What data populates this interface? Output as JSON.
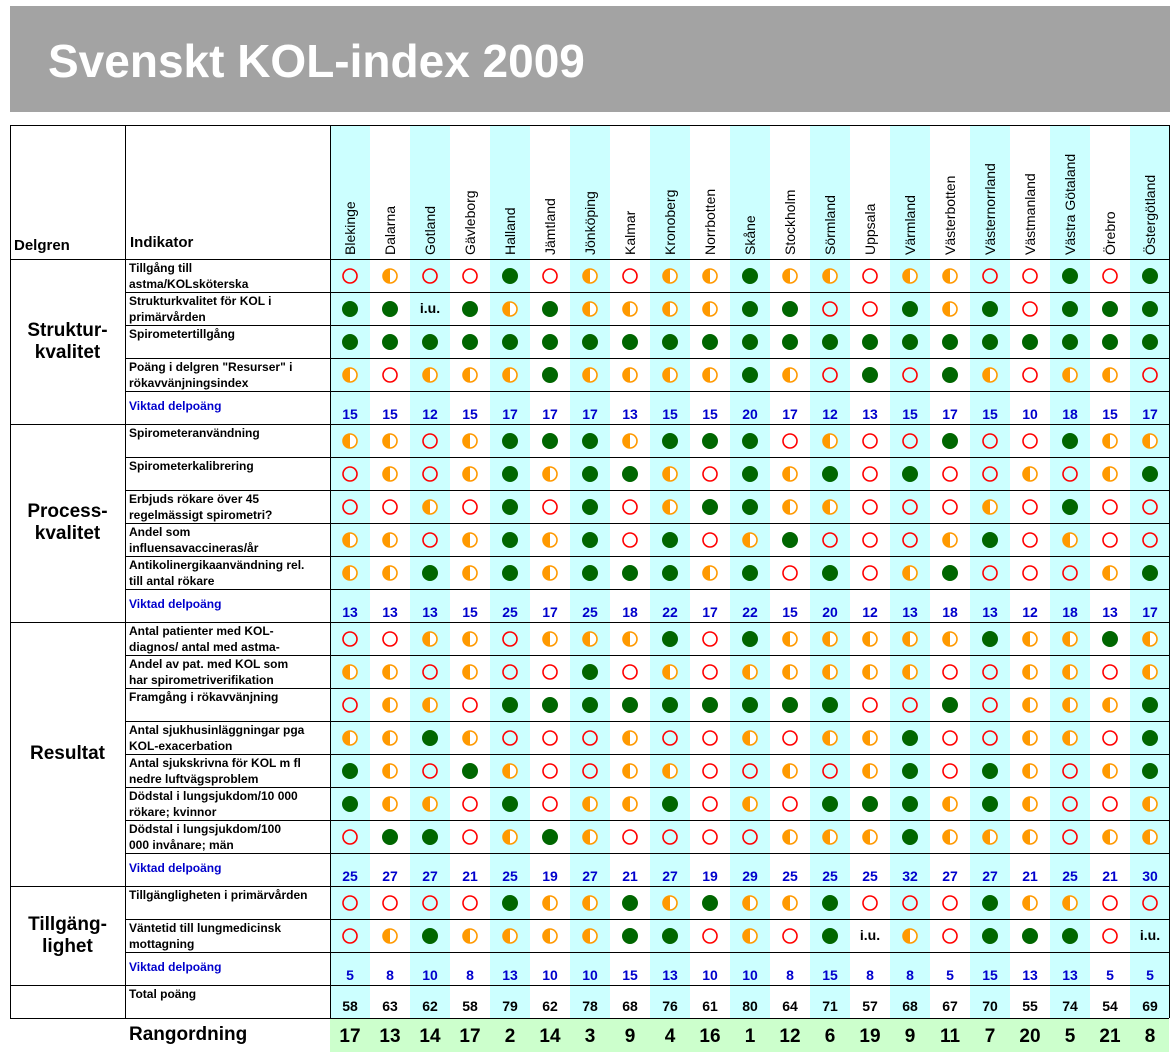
{
  "title": "Svenskt KOL-index 2009",
  "headers": {
    "group": "Delgren",
    "indicator": "Indikator"
  },
  "regions": [
    "Blekinge",
    "Dalarna",
    "Gotland",
    "Gävleborg",
    "Halland",
    "Jämtland",
    "Jönköping",
    "Kalmar",
    "Kronoberg",
    "Norrbotten",
    "Skåne",
    "Stockholm",
    "Sörmland",
    "Uppsala",
    "Värmland",
    "Västerbotten",
    "Västernorrland",
    "Västmanland",
    "Västra Götaland",
    "Örebro",
    "Östergötland"
  ],
  "legend_colors": {
    "full": "#006600",
    "half_fill": "#ff9900",
    "empty": "#ff0000"
  },
  "groups": [
    {
      "name": "Struktur-\nkvalitet",
      "indicators": [
        {
          "label": "Tillgång till\nastma/KOLsköterska",
          "values": [
            "E",
            "H",
            "E",
            "E",
            "F",
            "E",
            "H",
            "E",
            "H",
            "H",
            "F",
            "H",
            "H",
            "E",
            "H",
            "H",
            "E",
            "E",
            "F",
            "E",
            "F"
          ]
        },
        {
          "label": "Strukturkvalitet för KOL i\nprimärvården",
          "values": [
            "F",
            "F",
            "i.u.",
            "F",
            "H",
            "F",
            "H",
            "H",
            "H",
            "H",
            "F",
            "F",
            "E",
            "E",
            "F",
            "H",
            "F",
            "E",
            "F",
            "F",
            "F"
          ]
        },
        {
          "label": "Spirometertillgång",
          "values": [
            "F",
            "F",
            "F",
            "F",
            "F",
            "F",
            "F",
            "F",
            "F",
            "F",
            "F",
            "F",
            "F",
            "F",
            "F",
            "F",
            "F",
            "F",
            "F",
            "F",
            "F"
          ]
        },
        {
          "label": "Poäng i delgren \"Resurser\" i\nrökavvänjningsindex",
          "values": [
            "H",
            "E",
            "H",
            "H",
            "H",
            "F",
            "H",
            "H",
            "H",
            "H",
            "F",
            "H",
            "E",
            "F",
            "E",
            "F",
            "H",
            "E",
            "H",
            "H",
            "E"
          ]
        }
      ],
      "weighted_label": "Viktad delpoäng",
      "weighted": [
        "15",
        "15",
        "12",
        "15",
        "17",
        "17",
        "17",
        "13",
        "15",
        "15",
        "20",
        "17",
        "12",
        "13",
        "15",
        "17",
        "15",
        "10",
        "18",
        "15",
        "17"
      ]
    },
    {
      "name": "Process-\nkvalitet",
      "indicators": [
        {
          "label": "Spirometeranvändning",
          "values": [
            "H",
            "H",
            "E",
            "H",
            "F",
            "F",
            "F",
            "H",
            "F",
            "F",
            "F",
            "E",
            "H",
            "E",
            "E",
            "F",
            "E",
            "E",
            "F",
            "H",
            "H"
          ]
        },
        {
          "label": "Spirometerkalibrering",
          "values": [
            "E",
            "H",
            "E",
            "H",
            "F",
            "H",
            "F",
            "F",
            "H",
            "E",
            "F",
            "H",
            "F",
            "E",
            "F",
            "E",
            "E",
            "H",
            "E",
            "H",
            "F"
          ]
        },
        {
          "label": "Erbjuds rökare över 45\nregelmässigt spirometri?",
          "values": [
            "E",
            "E",
            "H",
            "E",
            "F",
            "E",
            "F",
            "E",
            "H",
            "F",
            "F",
            "H",
            "H",
            "E",
            "E",
            "E",
            "H",
            "E",
            "F",
            "E",
            "E"
          ]
        },
        {
          "label": "Andel som\ninfluensavaccineras/år",
          "values": [
            "H",
            "H",
            "E",
            "H",
            "F",
            "H",
            "F",
            "E",
            "F",
            "E",
            "H",
            "F",
            "E",
            "E",
            "E",
            "H",
            "F",
            "E",
            "H",
            "E",
            "E"
          ]
        },
        {
          "label": "Antikolinergikaanvändning rel.\ntill antal rökare",
          "values": [
            "H",
            "H",
            "F",
            "H",
            "F",
            "H",
            "F",
            "F",
            "F",
            "H",
            "F",
            "E",
            "F",
            "E",
            "H",
            "F",
            "E",
            "E",
            "E",
            "H",
            "F"
          ]
        }
      ],
      "weighted_label": "Viktad delpoäng",
      "weighted": [
        "13",
        "13",
        "13",
        "15",
        "25",
        "17",
        "25",
        "18",
        "22",
        "17",
        "22",
        "15",
        "20",
        "12",
        "13",
        "18",
        "13",
        "12",
        "18",
        "13",
        "17"
      ]
    },
    {
      "name": "Resultat",
      "indicators": [
        {
          "label": "Antal patienter med KOL-\ndiagnos/ antal med astma-",
          "values": [
            "E",
            "E",
            "H",
            "H",
            "E",
            "H",
            "H",
            "H",
            "F",
            "E",
            "F",
            "H",
            "H",
            "H",
            "H",
            "H",
            "F",
            "H",
            "H",
            "F",
            "H"
          ]
        },
        {
          "label": "Andel av pat. med KOL som\nhar spirometriverifikation",
          "values": [
            "H",
            "H",
            "E",
            "H",
            "E",
            "E",
            "F",
            "E",
            "H",
            "E",
            "H",
            "H",
            "H",
            "H",
            "H",
            "E",
            "E",
            "H",
            "H",
            "E",
            "H"
          ]
        },
        {
          "label": "Framgång i rökavvänjning",
          "values": [
            "E",
            "H",
            "H",
            "E",
            "F",
            "F",
            "F",
            "F",
            "F",
            "F",
            "F",
            "F",
            "F",
            "E",
            "E",
            "F",
            "E",
            "H",
            "H",
            "H",
            "F"
          ]
        },
        {
          "label": "Antal sjukhusinläggningar pga\nKOL-exacerbation",
          "values": [
            "H",
            "H",
            "F",
            "H",
            "E",
            "E",
            "E",
            "H",
            "E",
            "E",
            "H",
            "E",
            "H",
            "H",
            "F",
            "E",
            "E",
            "H",
            "H",
            "E",
            "F"
          ]
        },
        {
          "label": "Antal sjukskrivna för KOL m fl\nnedre luftvägsproblem",
          "values": [
            "F",
            "H",
            "E",
            "F",
            "H",
            "E",
            "E",
            "H",
            "H",
            "E",
            "E",
            "H",
            "E",
            "H",
            "F",
            "E",
            "F",
            "H",
            "E",
            "H",
            "F"
          ]
        },
        {
          "label": "Dödstal i lungsjukdom/10 000\nrökare; kvinnor",
          "values": [
            "F",
            "H",
            "H",
            "E",
            "F",
            "E",
            "H",
            "H",
            "F",
            "E",
            "H",
            "E",
            "F",
            "F",
            "F",
            "H",
            "F",
            "H",
            "E",
            "E",
            "H"
          ]
        },
        {
          "label": "Dödstal i lungsjukdom/100\n000 invånare; män",
          "values": [
            "E",
            "F",
            "F",
            "E",
            "H",
            "F",
            "H",
            "E",
            "E",
            "E",
            "E",
            "H",
            "H",
            "H",
            "F",
            "H",
            "H",
            "H",
            "E",
            "H",
            "H"
          ]
        }
      ],
      "weighted_label": "Viktad delpoäng",
      "weighted": [
        "25",
        "27",
        "27",
        "21",
        "25",
        "19",
        "27",
        "21",
        "27",
        "19",
        "29",
        "25",
        "25",
        "25",
        "32",
        "27",
        "27",
        "21",
        "25",
        "21",
        "30"
      ]
    },
    {
      "name": "Tillgäng-\nlighet",
      "indicators": [
        {
          "label": "Tillgängligheten i primärvården",
          "values": [
            "E",
            "E",
            "E",
            "E",
            "F",
            "H",
            "H",
            "F",
            "H",
            "F",
            "H",
            "H",
            "F",
            "E",
            "E",
            "E",
            "F",
            "H",
            "H",
            "E",
            "E"
          ]
        },
        {
          "label": "Väntetid till lungmedicinsk\nmottagning",
          "values": [
            "E",
            "H",
            "F",
            "H",
            "H",
            "H",
            "H",
            "F",
            "F",
            "E",
            "H",
            "E",
            "F",
            "i.u.",
            "H",
            "E",
            "F",
            "F",
            "F",
            "E",
            "i.u."
          ]
        }
      ],
      "weighted_label": "Viktad delpoäng",
      "weighted": [
        "5",
        "8",
        "10",
        "8",
        "13",
        "10",
        "10",
        "15",
        "13",
        "10",
        "10",
        "8",
        "15",
        "8",
        "8",
        "5",
        "15",
        "13",
        "13",
        "5",
        "5"
      ]
    }
  ],
  "total_label": "Total poäng",
  "totals": [
    "58",
    "63",
    "62",
    "58",
    "79",
    "62",
    "78",
    "68",
    "76",
    "61",
    "80",
    "64",
    "71",
    "57",
    "68",
    "67",
    "70",
    "55",
    "74",
    "54",
    "69"
  ],
  "rank_label": "Rangordning",
  "ranks": [
    "17",
    "13",
    "14",
    "17",
    "2",
    "14",
    "3",
    "9",
    "4",
    "16",
    "1",
    "12",
    "6",
    "19",
    "9",
    "11",
    "7",
    "20",
    "5",
    "21",
    "8"
  ]
}
